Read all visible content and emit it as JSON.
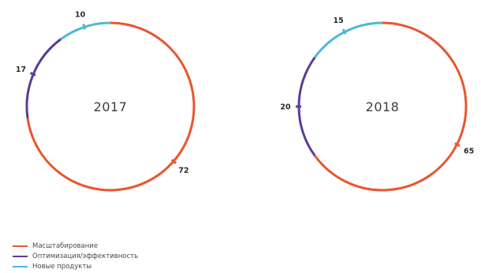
{
  "chart_data": [
    {
      "type": "pie",
      "style": "ring",
      "center_label": "2017",
      "series": [
        {
          "name": "Масштабирование",
          "value": 72,
          "color": "#e8562f"
        },
        {
          "name": "Оптимизация/эффективность",
          "value": 17,
          "color": "#5a3d93"
        },
        {
          "name": "Новые продукты",
          "value": 10,
          "color": "#4fb8d6"
        }
      ],
      "legend_position": "bottom-left"
    },
    {
      "type": "pie",
      "style": "ring",
      "center_label": "2018",
      "series": [
        {
          "name": "Масштабирование",
          "value": 65,
          "color": "#e8562f"
        },
        {
          "name": "Оптимизация/эффективность",
          "value": 20,
          "color": "#5a3d93"
        },
        {
          "name": "Новые продукты",
          "value": 15,
          "color": "#4fb8d6"
        }
      ],
      "legend_position": "bottom-left"
    }
  ],
  "legend": [
    {
      "label": "Масштабирование",
      "color": "#e8562f"
    },
    {
      "label": "Оптимизация/эффективность",
      "color": "#5a3d93"
    },
    {
      "label": "Новые продукты",
      "color": "#4fb8d6"
    }
  ]
}
